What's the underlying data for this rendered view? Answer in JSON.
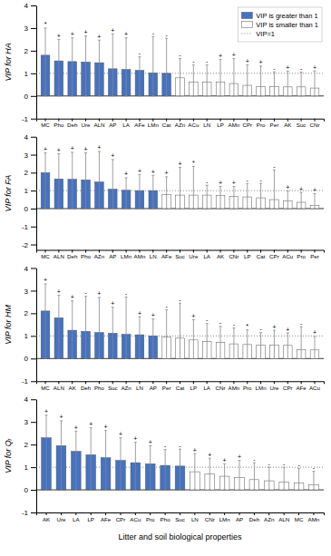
{
  "chart_data": [
    {
      "type": "bar",
      "ylabel": "VIP for HA",
      "categories": [
        "MC",
        "Pho",
        "Deh",
        "Ure",
        "ALN",
        "AP",
        "LA",
        "AFe",
        "LMn",
        "Cat",
        "AZn",
        "ACu",
        "LN",
        "LP",
        "AMn",
        "CPr",
        "Pro",
        "Per",
        "AK",
        "Suc",
        "CNr"
      ],
      "values": [
        1.8,
        1.55,
        1.52,
        1.5,
        1.47,
        1.2,
        1.17,
        1.13,
        1.02,
        1.0,
        0.8,
        0.62,
        0.62,
        0.62,
        0.55,
        0.47,
        0.42,
        0.42,
        0.4,
        0.4,
        0.35
      ],
      "err_up": [
        1.2,
        0.95,
        1.05,
        1.15,
        1.0,
        1.55,
        1.4,
        0.6,
        1.6,
        1.55,
        0.85,
        0.75,
        0.75,
        1.0,
        1.1,
        0.9,
        0.9,
        0.65,
        0.7,
        0.65,
        0.75
      ],
      "err_dn": [
        1.8,
        1.55,
        1.52,
        1.5,
        1.47,
        1.2,
        1.17,
        1.13,
        1.02,
        1.0,
        0.8,
        0.62,
        0.62,
        0.62,
        0.55,
        0.47,
        0.42,
        0.42,
        0.4,
        0.4,
        0.35
      ],
      "signs": [
        "*",
        "+",
        "+",
        "+",
        "+",
        "+",
        "+",
        "-",
        "-",
        "-",
        "-",
        "-",
        "-",
        "+",
        "+",
        "+",
        "+",
        "-",
        "+",
        "-",
        "+"
      ],
      "colors": [
        "#4472C4",
        "#4472C4",
        "#4472C4",
        "#4472C4",
        "#4472C4",
        "#4472C4",
        "#4472C4",
        "#4472C4",
        "#4472C4",
        "#4472C4",
        "#FFFFFF",
        "#FFFFFF",
        "#FFFFFF",
        "#FFFFFF",
        "#FFFFFF",
        "#FFFFFF",
        "#FFFFFF",
        "#FFFFFF",
        "#FFFFFF",
        "#FFFFFF",
        "#FFFFFF"
      ],
      "threshold": 1.0,
      "ylim": [
        -1,
        4
      ],
      "yticks": [
        -1,
        0,
        1,
        2,
        3,
        4
      ],
      "legend": "upper right",
      "legend_entries": [
        {
          "label": "VIP is greater than 1",
          "color": "#4472C4"
        },
        {
          "label": "VIP is smaller than 1",
          "color": "#FFFFFF"
        },
        {
          "label": "VIP=1",
          "line_style": "dotted"
        }
      ]
    },
    {
      "type": "bar",
      "ylabel": "VIP for FA",
      "categories": [
        "MC",
        "ALN",
        "Deh",
        "Pho",
        "AZn",
        "AP",
        "LMn",
        "AMn",
        "LN",
        "AFe",
        "Suc",
        "Ure",
        "LA",
        "AK",
        "CNr",
        "LP",
        "Cat",
        "CPr",
        "ACu",
        "Pro",
        "Per"
      ],
      "values": [
        2.0,
        1.65,
        1.63,
        1.6,
        1.48,
        1.08,
        1.02,
        1.0,
        1.0,
        0.77,
        0.75,
        0.75,
        0.75,
        0.73,
        0.68,
        0.65,
        0.6,
        0.5,
        0.43,
        0.35,
        0.18
      ],
      "err_up": [
        1.1,
        1.4,
        1.5,
        1.5,
        1.7,
        1.65,
        0.7,
        0.9,
        0.85,
        1.0,
        1.55,
        1.6,
        0.55,
        0.5,
        0.55,
        0.75,
        0.8,
        1.65,
        0.55,
        0.55,
        0.65
      ],
      "err_dn": [
        2.0,
        1.65,
        1.63,
        1.6,
        1.48,
        1.08,
        1.02,
        1.0,
        1.0,
        0.77,
        0.75,
        0.75,
        0.75,
        0.73,
        0.68,
        0.65,
        0.6,
        0.5,
        0.43,
        0.35,
        0.18
      ],
      "signs": [
        "+",
        "+",
        "+",
        "+",
        "+",
        "+",
        "+",
        "+",
        "+",
        "+",
        "+",
        "*",
        "-",
        "+",
        "+",
        "-",
        "-",
        "-",
        "+",
        "+",
        "+"
      ],
      "colors": [
        "#4472C4",
        "#4472C4",
        "#4472C4",
        "#4472C4",
        "#4472C4",
        "#4472C4",
        "#4472C4",
        "#4472C4",
        "#4472C4",
        "#FFFFFF",
        "#FFFFFF",
        "#FFFFFF",
        "#FFFFFF",
        "#FFFFFF",
        "#FFFFFF",
        "#FFFFFF",
        "#FFFFFF",
        "#FFFFFF",
        "#FFFFFF",
        "#FFFFFF",
        "#FFFFFF"
      ],
      "threshold": 1.0,
      "ylim": [
        -2.3,
        4
      ],
      "yticks": [
        -2,
        -1,
        0,
        1,
        2,
        3,
        4
      ]
    },
    {
      "type": "bar",
      "ylabel": "VIP for HM",
      "categories": [
        "MC",
        "ALN",
        "AK",
        "Deh",
        "Pho",
        "Suc",
        "AZn",
        "LN",
        "AP",
        "Per",
        "Cat",
        "LP",
        "LA",
        "CNr",
        "AMn",
        "Pro",
        "LMn",
        "Ure",
        "CPr",
        "AFe",
        "ACu"
      ],
      "values": [
        2.1,
        1.8,
        1.25,
        1.2,
        1.15,
        1.12,
        1.07,
        1.05,
        1.0,
        0.95,
        0.9,
        0.82,
        0.75,
        0.72,
        0.65,
        0.62,
        0.6,
        0.6,
        0.58,
        0.4,
        0.38
      ],
      "err_up": [
        1.2,
        1.0,
        1.3,
        1.55,
        1.55,
        1.15,
        1.65,
        0.8,
        0.75,
        1.2,
        1.55,
        0.9,
        0.8,
        0.7,
        0.7,
        0.65,
        0.55,
        0.65,
        0.55,
        1.0,
        0.6
      ],
      "err_dn": [
        2.1,
        1.8,
        1.25,
        1.2,
        1.15,
        1.12,
        1.07,
        1.05,
        1.0,
        0.95,
        0.9,
        0.82,
        0.75,
        0.72,
        0.65,
        0.62,
        0.6,
        0.6,
        0.58,
        0.4,
        0.38
      ],
      "signs": [
        "+",
        "+",
        "+",
        "-",
        "+",
        "+",
        "-",
        "+",
        "+",
        "-",
        "-",
        "+",
        "-",
        "-",
        "-",
        "*",
        "-",
        "+",
        "+",
        "-",
        "+"
      ],
      "colors": [
        "#4472C4",
        "#4472C4",
        "#4472C4",
        "#4472C4",
        "#4472C4",
        "#4472C4",
        "#4472C4",
        "#4472C4",
        "#4472C4",
        "#FFFFFF",
        "#FFFFFF",
        "#FFFFFF",
        "#FFFFFF",
        "#FFFFFF",
        "#FFFFFF",
        "#FFFFFF",
        "#FFFFFF",
        "#FFFFFF",
        "#FFFFFF",
        "#FFFFFF",
        "#FFFFFF"
      ],
      "threshold": 1.0,
      "ylim": [
        -1,
        4
      ],
      "yticks": [
        -1,
        0,
        1,
        2,
        3,
        4
      ]
    },
    {
      "type": "bar",
      "ylabel": "VIP for Qᵣ",
      "xlabel": "Litter and soil biological properties",
      "categories": [
        "AK",
        "Ure",
        "LA",
        "LP",
        "AFe",
        "CPr",
        "ACu",
        "Pro",
        "Pho",
        "Suc",
        "LN",
        "CNr",
        "LMn",
        "AP",
        "Deh",
        "AZn",
        "ALN",
        "MC",
        "AMn"
      ],
      "values": [
        2.3,
        1.95,
        1.7,
        1.55,
        1.42,
        1.3,
        1.2,
        1.15,
        1.08,
        1.05,
        0.8,
        0.7,
        0.6,
        0.55,
        0.45,
        0.4,
        0.35,
        0.3,
        0.22
      ],
      "err_up": [
        1.0,
        1.1,
        0.9,
        1.2,
        1.2,
        1.0,
        0.9,
        0.8,
        0.7,
        0.75,
        0.8,
        0.7,
        0.55,
        0.75,
        0.75,
        0.6,
        0.65,
        0.65,
        0.6
      ],
      "err_dn": [
        2.3,
        1.95,
        1.7,
        1.55,
        1.42,
        1.3,
        1.2,
        1.15,
        1.08,
        1.05,
        0.8,
        0.7,
        0.6,
        0.55,
        0.45,
        0.4,
        0.35,
        0.3,
        0.22
      ],
      "signs": [
        "+",
        "+",
        "+",
        "+",
        "+",
        "+",
        "+",
        "+",
        "-",
        "-",
        "+",
        "+",
        "+",
        "+",
        "-",
        "-",
        "-",
        "-",
        "-"
      ],
      "colors": [
        "#4472C4",
        "#4472C4",
        "#4472C4",
        "#4472C4",
        "#4472C4",
        "#4472C4",
        "#4472C4",
        "#4472C4",
        "#4472C4",
        "#4472C4",
        "#FFFFFF",
        "#FFFFFF",
        "#FFFFFF",
        "#FFFFFF",
        "#FFFFFF",
        "#FFFFFF",
        "#FFFFFF",
        "#FFFFFF",
        "#FFFFFF"
      ],
      "threshold": 1.0,
      "ylim": [
        -1,
        4
      ],
      "yticks": [
        -1,
        0,
        1,
        2,
        3,
        4
      ]
    }
  ]
}
